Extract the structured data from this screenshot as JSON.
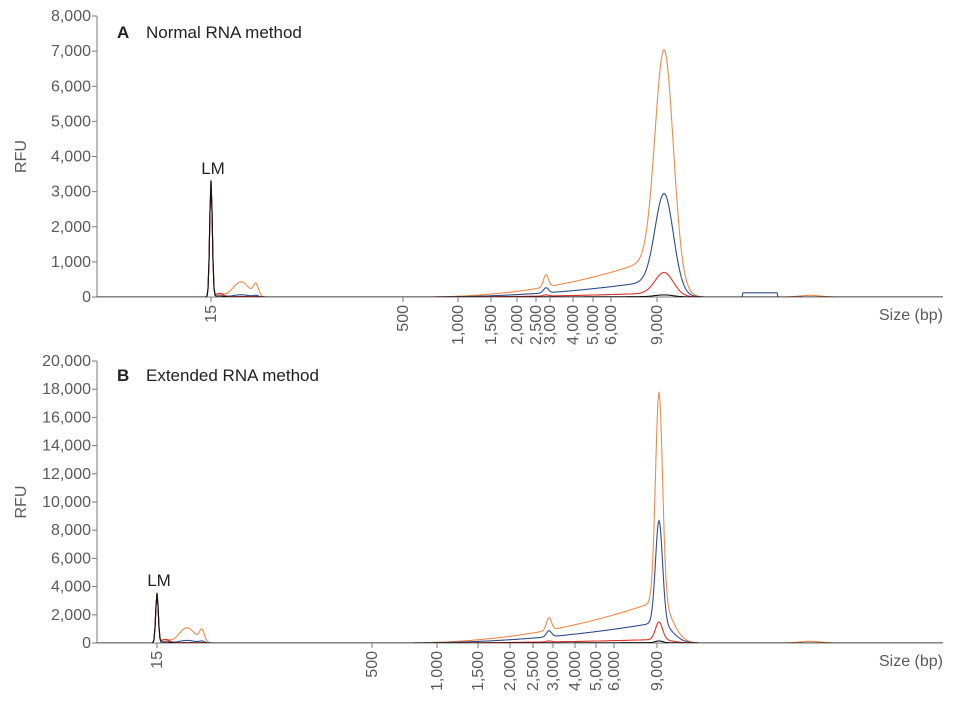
{
  "chart_data": [
    {
      "type": "line",
      "panel_label": "A",
      "title": "Normal RNA method",
      "ylabel": "RFU",
      "xlabel": "Size (bp)",
      "ylim": [
        0,
        8000
      ],
      "yticks": [
        0,
        1000,
        2000,
        3000,
        4000,
        5000,
        6000,
        7000,
        8000
      ],
      "ytick_labels": [
        "0",
        "1,000",
        "2,000",
        "3,000",
        "4,000",
        "5,000",
        "6,000",
        "7,000",
        "8,000"
      ],
      "x_scale": "non-linear (electropherogram size ladder)",
      "xtick_labels": [
        "15",
        "500",
        "1,000",
        "1,500",
        "2,000",
        "2,500",
        "3,000",
        "4,000",
        "5,000",
        "6,000",
        "9,000"
      ],
      "annotation": "LM",
      "series": [
        {
          "color": "#f08a4b",
          "peaks": [
            {
              "x": "15",
              "y": 3300
            },
            {
              "x": "9,000",
              "y": 7050
            }
          ]
        },
        {
          "color": "#2e4e8e",
          "peaks": [
            {
              "x": "15",
              "y": 3300
            },
            {
              "x": "9,000",
              "y": 2950
            }
          ]
        },
        {
          "color": "#e0302a",
          "peaks": [
            {
              "x": "15",
              "y": 3300
            },
            {
              "x": "9,000",
              "y": 700
            }
          ]
        },
        {
          "color": "#111111",
          "peaks": [
            {
              "x": "15",
              "y": 3300
            },
            {
              "x": "9,000",
              "y": 60
            }
          ]
        }
      ]
    },
    {
      "type": "line",
      "panel_label": "B",
      "title": "Extended RNA method",
      "ylabel": "RFU",
      "xlabel": "Size (bp)",
      "ylim": [
        0,
        20000
      ],
      "yticks": [
        0,
        2000,
        4000,
        6000,
        8000,
        10000,
        12000,
        14000,
        16000,
        18000,
        20000
      ],
      "ytick_labels": [
        "0",
        "2,000",
        "4,000",
        "6,000",
        "8,000",
        "10,000",
        "12,000",
        "14,000",
        "16,000",
        "18,000",
        "20,000"
      ],
      "x_scale": "non-linear (electropherogram size ladder)",
      "xtick_labels": [
        "15",
        "500",
        "1,000",
        "1,500",
        "2,000",
        "2,500",
        "3,000",
        "4,000",
        "5,000",
        "6,000",
        "9,000"
      ],
      "annotation": "LM",
      "series": [
        {
          "color": "#f08a4b",
          "peaks": [
            {
              "x": "15",
              "y": 3500
            },
            {
              "x": "9,000",
              "y": 17800
            }
          ]
        },
        {
          "color": "#2e4e8e",
          "peaks": [
            {
              "x": "15",
              "y": 3500
            },
            {
              "x": "9,000",
              "y": 8700
            }
          ]
        },
        {
          "color": "#e0302a",
          "peaks": [
            {
              "x": "15",
              "y": 3500
            },
            {
              "x": "9,000",
              "y": 1500
            }
          ]
        },
        {
          "color": "#111111",
          "peaks": [
            {
              "x": "15",
              "y": 3500
            },
            {
              "x": "9,000",
              "y": 150
            }
          ]
        }
      ]
    }
  ]
}
